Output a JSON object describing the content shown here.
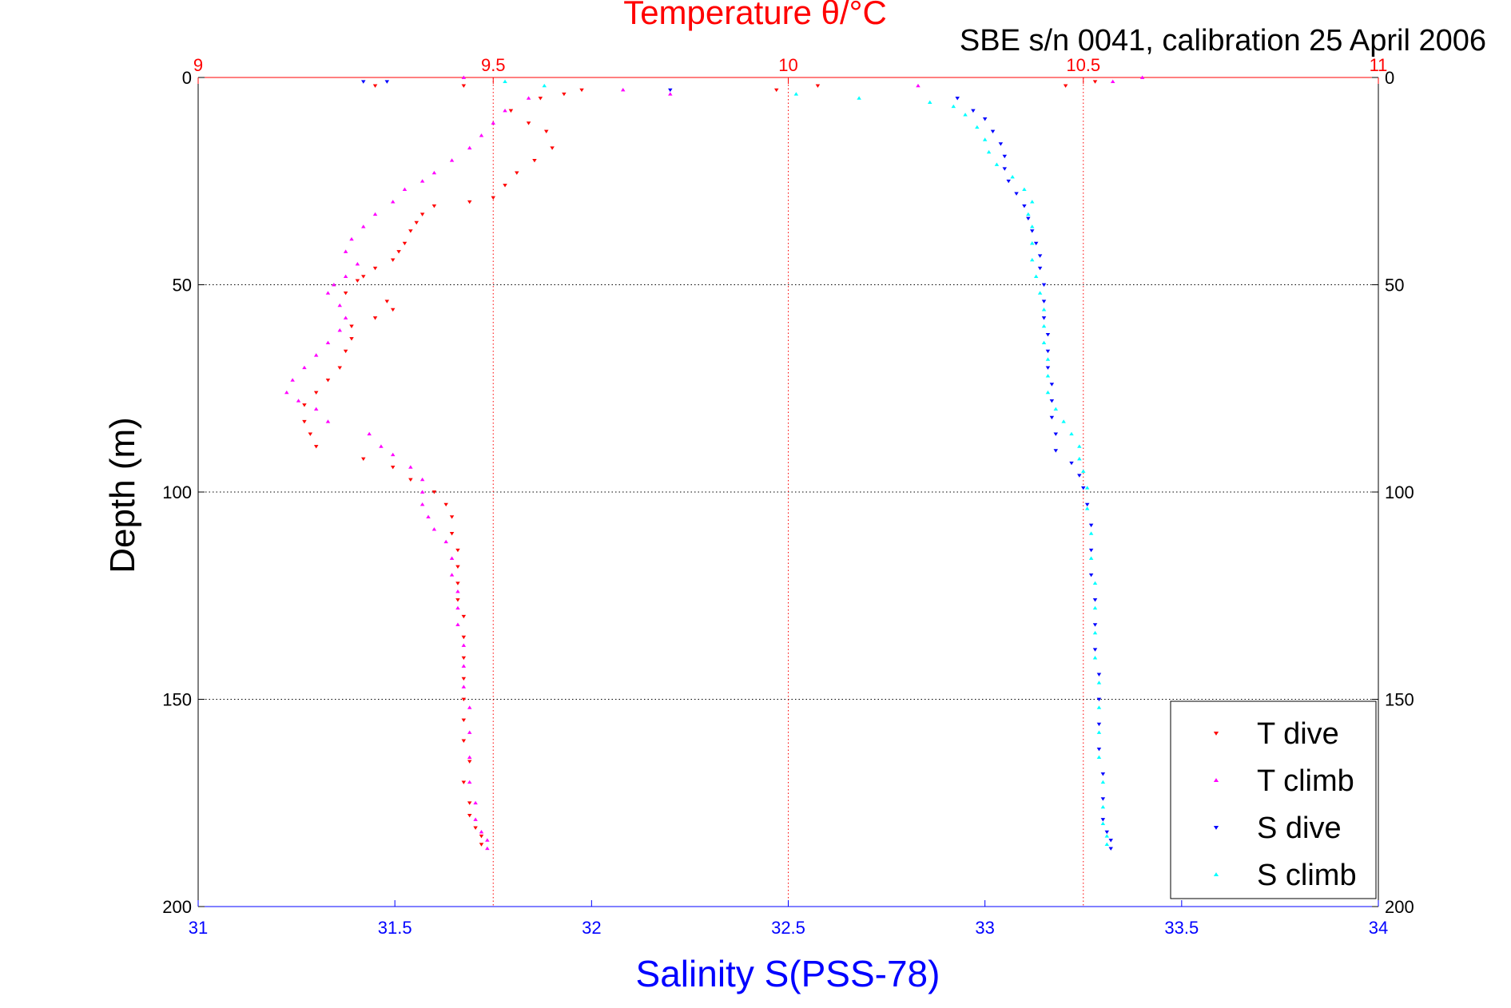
{
  "chart_data": {
    "type": "scatter",
    "title": "Temperature θ/°C",
    "subtitle": "SBE s/n 0041, calibration 25 April 2006",
    "xlabel": "Salinity S(PSS-78)",
    "ylabel": "Depth (m)",
    "x_bottom": {
      "label": "Salinity S(PSS-78)",
      "range": [
        31,
        34
      ],
      "ticks": [
        "31",
        "31.5",
        "32",
        "32.5",
        "33",
        "33.5",
        "34"
      ],
      "color": "#0000ff"
    },
    "x_top": {
      "label": "Temperature θ/°C",
      "range": [
        9,
        11
      ],
      "ticks": [
        "9",
        "9.5",
        "10",
        "10.5",
        "11"
      ],
      "color": "#ff0000"
    },
    "y": {
      "label": "Depth (m)",
      "range": [
        0,
        200
      ],
      "reversed": true,
      "ticks": [
        "0",
        "50",
        "100",
        "150",
        "200"
      ]
    },
    "grid": true,
    "legend": {
      "position": "bottom-right"
    },
    "series": [
      {
        "name": "T dive",
        "axis": "temperature",
        "color": "#ff0000",
        "marker": "triangle-down",
        "points": [
          [
            9.3,
            2
          ],
          [
            9.45,
            2
          ],
          [
            9.65,
            3
          ],
          [
            9.98,
            3
          ],
          [
            10.05,
            2
          ],
          [
            10.47,
            2
          ],
          [
            10.52,
            1
          ],
          [
            9.62,
            4
          ],
          [
            9.58,
            5
          ],
          [
            9.53,
            8
          ],
          [
            9.56,
            11
          ],
          [
            9.59,
            13
          ],
          [
            9.6,
            17
          ],
          [
            9.57,
            20
          ],
          [
            9.54,
            23
          ],
          [
            9.52,
            26
          ],
          [
            9.5,
            29
          ],
          [
            9.46,
            30
          ],
          [
            9.4,
            31
          ],
          [
            9.38,
            33
          ],
          [
            9.37,
            35
          ],
          [
            9.36,
            37
          ],
          [
            9.35,
            40
          ],
          [
            9.34,
            42
          ],
          [
            9.33,
            44
          ],
          [
            9.3,
            46
          ],
          [
            9.28,
            48
          ],
          [
            9.27,
            49
          ],
          [
            9.25,
            52
          ],
          [
            9.32,
            54
          ],
          [
            9.33,
            56
          ],
          [
            9.3,
            58
          ],
          [
            9.26,
            60
          ],
          [
            9.26,
            63
          ],
          [
            9.25,
            66
          ],
          [
            9.24,
            70
          ],
          [
            9.22,
            73
          ],
          [
            9.2,
            76
          ],
          [
            9.18,
            79
          ],
          [
            9.18,
            83
          ],
          [
            9.19,
            86
          ],
          [
            9.2,
            89
          ],
          [
            9.28,
            92
          ],
          [
            9.33,
            94
          ],
          [
            9.36,
            97
          ],
          [
            9.4,
            100
          ],
          [
            9.42,
            103
          ],
          [
            9.43,
            106
          ],
          [
            9.43,
            110
          ],
          [
            9.44,
            114
          ],
          [
            9.44,
            118
          ],
          [
            9.44,
            122
          ],
          [
            9.44,
            126
          ],
          [
            9.45,
            130
          ],
          [
            9.45,
            135
          ],
          [
            9.45,
            140
          ],
          [
            9.45,
            145
          ],
          [
            9.45,
            150
          ],
          [
            9.45,
            155
          ],
          [
            9.45,
            160
          ],
          [
            9.46,
            165
          ],
          [
            9.45,
            170
          ],
          [
            9.46,
            175
          ],
          [
            9.46,
            178
          ],
          [
            9.47,
            181
          ],
          [
            9.48,
            183
          ],
          [
            9.48,
            185
          ]
        ]
      },
      {
        "name": "T climb",
        "axis": "temperature",
        "color": "#ff00ff",
        "marker": "triangle-up",
        "points": [
          [
            9.45,
            0
          ],
          [
            9.72,
            3
          ],
          [
            9.8,
            4
          ],
          [
            10.22,
            2
          ],
          [
            10.55,
            1
          ],
          [
            10.6,
            0
          ],
          [
            9.56,
            5
          ],
          [
            9.52,
            8
          ],
          [
            9.5,
            11
          ],
          [
            9.48,
            14
          ],
          [
            9.46,
            17
          ],
          [
            9.43,
            20
          ],
          [
            9.4,
            23
          ],
          [
            9.38,
            25
          ],
          [
            9.35,
            27
          ],
          [
            9.33,
            30
          ],
          [
            9.3,
            33
          ],
          [
            9.28,
            36
          ],
          [
            9.26,
            39
          ],
          [
            9.25,
            42
          ],
          [
            9.27,
            45
          ],
          [
            9.25,
            48
          ],
          [
            9.23,
            50
          ],
          [
            9.22,
            52
          ],
          [
            9.24,
            55
          ],
          [
            9.25,
            58
          ],
          [
            9.24,
            61
          ],
          [
            9.22,
            64
          ],
          [
            9.2,
            67
          ],
          [
            9.18,
            70
          ],
          [
            9.16,
            73
          ],
          [
            9.15,
            76
          ],
          [
            9.17,
            78
          ],
          [
            9.2,
            80
          ],
          [
            9.22,
            83
          ],
          [
            9.29,
            86
          ],
          [
            9.31,
            89
          ],
          [
            9.33,
            91
          ],
          [
            9.36,
            94
          ],
          [
            9.38,
            97
          ],
          [
            9.38,
            100
          ],
          [
            9.38,
            103
          ],
          [
            9.39,
            106
          ],
          [
            9.4,
            109
          ],
          [
            9.42,
            112
          ],
          [
            9.43,
            116
          ],
          [
            9.43,
            120
          ],
          [
            9.44,
            124
          ],
          [
            9.44,
            128
          ],
          [
            9.44,
            132
          ],
          [
            9.45,
            137
          ],
          [
            9.45,
            142
          ],
          [
            9.45,
            147
          ],
          [
            9.46,
            152
          ],
          [
            9.46,
            158
          ],
          [
            9.46,
            164
          ],
          [
            9.46,
            170
          ],
          [
            9.47,
            175
          ],
          [
            9.47,
            179
          ],
          [
            9.48,
            182
          ],
          [
            9.49,
            184
          ],
          [
            9.49,
            186
          ]
        ]
      },
      {
        "name": "S dive",
        "axis": "salinity",
        "color": "#0000ff",
        "marker": "triangle-down",
        "points": [
          [
            31.42,
            1
          ],
          [
            31.48,
            1
          ],
          [
            32.2,
            3
          ],
          [
            32.93,
            5
          ],
          [
            32.97,
            8
          ],
          [
            33.0,
            10
          ],
          [
            33.02,
            13
          ],
          [
            33.04,
            16
          ],
          [
            33.05,
            19
          ],
          [
            33.05,
            22
          ],
          [
            33.06,
            25
          ],
          [
            33.08,
            28
          ],
          [
            33.1,
            31
          ],
          [
            33.11,
            34
          ],
          [
            33.12,
            37
          ],
          [
            33.13,
            40
          ],
          [
            33.14,
            43
          ],
          [
            33.14,
            46
          ],
          [
            33.15,
            50
          ],
          [
            33.15,
            54
          ],
          [
            33.15,
            58
          ],
          [
            33.16,
            62
          ],
          [
            33.16,
            66
          ],
          [
            33.16,
            70
          ],
          [
            33.17,
            74
          ],
          [
            33.17,
            78
          ],
          [
            33.17,
            82
          ],
          [
            33.18,
            86
          ],
          [
            33.18,
            90
          ],
          [
            33.22,
            93
          ],
          [
            33.24,
            96
          ],
          [
            33.25,
            99
          ],
          [
            33.26,
            103
          ],
          [
            33.27,
            108
          ],
          [
            33.27,
            114
          ],
          [
            33.27,
            120
          ],
          [
            33.28,
            126
          ],
          [
            33.28,
            132
          ],
          [
            33.28,
            138
          ],
          [
            33.29,
            144
          ],
          [
            33.29,
            150
          ],
          [
            33.29,
            156
          ],
          [
            33.29,
            162
          ],
          [
            33.3,
            168
          ],
          [
            33.3,
            174
          ],
          [
            33.3,
            179
          ],
          [
            33.31,
            182
          ],
          [
            33.32,
            184
          ],
          [
            33.32,
            186
          ]
        ]
      },
      {
        "name": "S climb",
        "axis": "salinity",
        "color": "#00ffff",
        "marker": "triangle-up",
        "points": [
          [
            31.78,
            1
          ],
          [
            31.88,
            2
          ],
          [
            32.52,
            4
          ],
          [
            32.68,
            5
          ],
          [
            32.86,
            6
          ],
          [
            32.92,
            7
          ],
          [
            32.95,
            9
          ],
          [
            32.98,
            12
          ],
          [
            33.0,
            15
          ],
          [
            33.01,
            18
          ],
          [
            33.03,
            21
          ],
          [
            33.07,
            24
          ],
          [
            33.1,
            27
          ],
          [
            33.12,
            30
          ],
          [
            33.11,
            33
          ],
          [
            33.12,
            36
          ],
          [
            33.12,
            40
          ],
          [
            33.12,
            44
          ],
          [
            33.13,
            48
          ],
          [
            33.14,
            52
          ],
          [
            33.15,
            56
          ],
          [
            33.15,
            60
          ],
          [
            33.15,
            64
          ],
          [
            33.16,
            68
          ],
          [
            33.16,
            72
          ],
          [
            33.16,
            76
          ],
          [
            33.18,
            80
          ],
          [
            33.2,
            83
          ],
          [
            33.22,
            86
          ],
          [
            33.24,
            89
          ],
          [
            33.24,
            92
          ],
          [
            33.25,
            95
          ],
          [
            33.26,
            99
          ],
          [
            33.26,
            104
          ],
          [
            33.27,
            110
          ],
          [
            33.27,
            116
          ],
          [
            33.28,
            122
          ],
          [
            33.28,
            128
          ],
          [
            33.28,
            134
          ],
          [
            33.28,
            140
          ],
          [
            33.29,
            146
          ],
          [
            33.29,
            152
          ],
          [
            33.29,
            158
          ],
          [
            33.29,
            164
          ],
          [
            33.3,
            170
          ],
          [
            33.3,
            176
          ],
          [
            33.3,
            180
          ],
          [
            33.31,
            183
          ],
          [
            33.31,
            185
          ]
        ]
      }
    ]
  }
}
